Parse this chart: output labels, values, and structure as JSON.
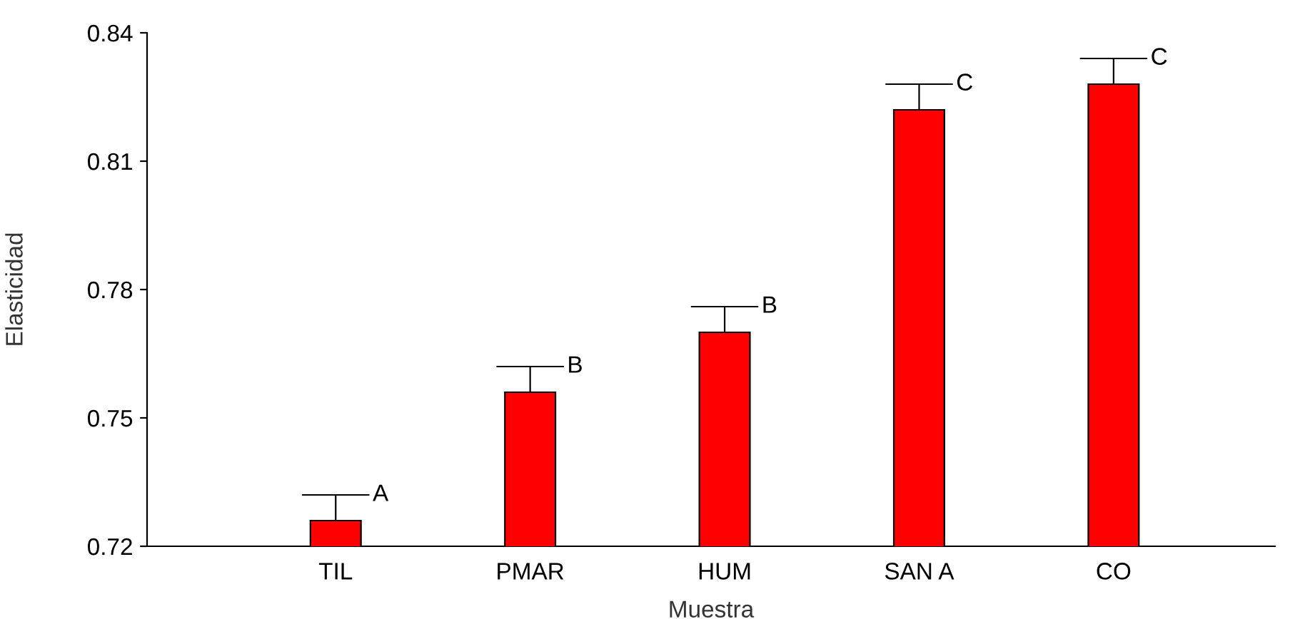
{
  "chart_data": {
    "type": "bar",
    "xlabel": "Muestra",
    "ylabel": "Elasticidad",
    "categories": [
      "TIL",
      "PMAR",
      "HUM",
      "SAN A",
      "CO"
    ],
    "values": [
      0.726,
      0.756,
      0.77,
      0.822,
      0.828
    ],
    "errors": [
      0.006,
      0.006,
      0.006,
      0.006,
      0.006
    ],
    "color": "#ff0000",
    "ylim": [
      0.72,
      0.84
    ],
    "yticks": [
      0.72,
      0.75,
      0.78,
      0.81,
      0.84
    ],
    "grid": false,
    "legend": false,
    "annotations": [
      "A",
      "B",
      "B",
      "C",
      "C"
    ]
  }
}
